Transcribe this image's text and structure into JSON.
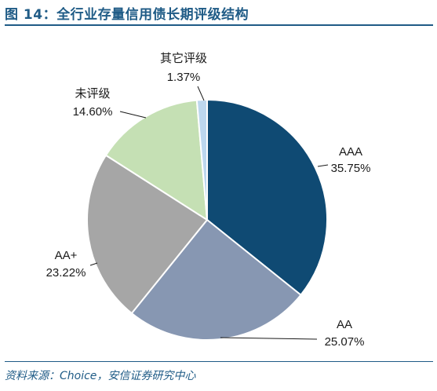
{
  "figure": {
    "title": "图 14：全行业存量信用债长期评级结构",
    "source": "资料来源：Choice，安信证券研究中心"
  },
  "chart_data": {
    "type": "pie",
    "title": "",
    "start_angle_deg": 0,
    "direction": "clockwise",
    "slices": [
      {
        "label": "AAA",
        "value": 35.75,
        "value_label": "35.75%",
        "color": "#0f4a73"
      },
      {
        "label": "AA",
        "value": 25.07,
        "value_label": "25.07%",
        "color": "#8797b2"
      },
      {
        "label": "AA+",
        "value": 23.22,
        "value_label": "23.22%",
        "color": "#a6a6a6"
      },
      {
        "label": "未评级",
        "value": 14.6,
        "value_label": "14.60%",
        "color": "#c5e0b4"
      },
      {
        "label": "其它评级",
        "value": 1.37,
        "value_label": "1.37%",
        "color": "#bdd7ee"
      }
    ]
  }
}
